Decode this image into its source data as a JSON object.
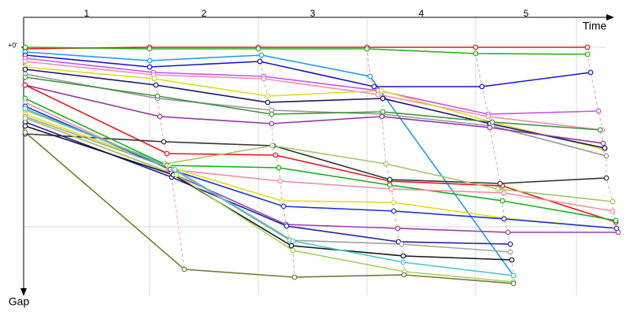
{
  "chart_data": {
    "type": "gap",
    "x_label": "Time",
    "y_label": "Gap",
    "laps": [
      "1",
      "2",
      "3",
      "4",
      "5"
    ],
    "xlim": [
      0,
      745
    ],
    "ylim": [
      -38,
      315
    ],
    "xgrid": [
      160,
      298,
      436,
      574,
      702
    ],
    "ygrid": [
      0,
      228
    ],
    "yticks": [
      {
        "value": 0,
        "label": "+0'"
      }
    ],
    "series": [
      {
        "color": "#e8141c",
        "x": [
          2,
          160,
          298,
          436,
          574,
          716
        ],
        "y": [
          2,
          0,
          0,
          0,
          0,
          0
        ]
      },
      {
        "color": "#22b21a",
        "x": [
          2,
          160,
          298,
          436,
          574,
          716
        ],
        "y": [
          0,
          2,
          2,
          2,
          8,
          9
        ]
      },
      {
        "color": "#1e9cf0",
        "x": [
          2,
          160,
          302,
          440,
          622
        ],
        "y": [
          6,
          17,
          10,
          37,
          290
        ]
      },
      {
        "color": "#1414c8",
        "x": [
          2,
          160,
          300,
          445,
          582,
          720
        ],
        "y": [
          10,
          25,
          18,
          50,
          50,
          32
        ]
      },
      {
        "color": "#c850f0",
        "x": [
          2,
          165,
          305,
          450,
          590,
          730
        ],
        "y": [
          14,
          32,
          37,
          55,
          85,
          81
        ]
      },
      {
        "color": "#f08cb4",
        "x": [
          2,
          165,
          305,
          450,
          590,
          735
        ],
        "y": [
          18,
          35,
          40,
          60,
          88,
          105
        ]
      },
      {
        "color": "#dcdc1e",
        "x": [
          2,
          166,
          310,
          454,
          595,
          738
        ],
        "y": [
          25,
          40,
          62,
          55,
          95,
          130
        ]
      },
      {
        "color": "#14146e",
        "x": [
          2,
          168,
          310,
          456,
          592,
          738
        ],
        "y": [
          28,
          48,
          70,
          65,
          97,
          128
        ]
      },
      {
        "color": "#969696",
        "x": [
          2,
          170,
          315,
          456,
          595,
          740
        ],
        "y": [
          34,
          65,
          80,
          85,
          100,
          138
        ]
      },
      {
        "color": "#3c963c",
        "x": [
          2,
          170,
          315,
          456,
          595,
          732
        ],
        "y": [
          38,
          62,
          85,
          82,
          95,
          105
        ]
      },
      {
        "color": "#9632a0",
        "x": [
          2,
          173,
          315,
          455,
          592,
          736
        ],
        "y": [
          48,
          88,
          97,
          88,
          102,
          122
        ]
      },
      {
        "color": "#e8141c",
        "x": [
          2,
          182,
          320,
          465,
          608,
          752
        ],
        "y": [
          48,
          135,
          137,
          170,
          176,
          222
        ]
      },
      {
        "color": "#323232",
        "x": [
          2,
          178,
          317,
          465,
          605,
          740
        ],
        "y": [
          110,
          120,
          125,
          168,
          173,
          166
        ]
      },
      {
        "color": "#a0c864",
        "x": [
          2,
          180,
          316,
          460,
          602,
          748
        ],
        "y": [
          80,
          148,
          125,
          148,
          180,
          196
        ]
      },
      {
        "color": "#14b414",
        "x": [
          2,
          182,
          324,
          465,
          608,
          752
        ],
        "y": [
          65,
          150,
          153,
          175,
          195,
          220
        ]
      },
      {
        "color": "#f08ca0",
        "x": [
          2,
          184,
          326,
          467,
          610,
          748
        ],
        "y": [
          70,
          155,
          170,
          180,
          185,
          208
        ]
      },
      {
        "color": "#e6dc14",
        "x": [
          2,
          185,
          328,
          470,
          610,
          752
        ],
        "y": [
          85,
          152,
          195,
          197,
          217,
          230
        ]
      },
      {
        "color": "#1e32dc",
        "x": [
          2,
          186,
          330,
          470,
          610,
          753
        ],
        "y": [
          75,
          155,
          202,
          208,
          218,
          230
        ]
      },
      {
        "color": "#a03cb4",
        "x": [
          2,
          188,
          333,
          475,
          615,
          755
        ],
        "y": [
          90,
          160,
          225,
          230,
          235,
          235
        ]
      },
      {
        "color": "#1e1ea0",
        "x": [
          2,
          188,
          334,
          476,
          618
        ],
        "y": [
          95,
          165,
          227,
          247,
          250
        ]
      },
      {
        "color": "#a0a0a0",
        "x": [
          2,
          190,
          338,
          480,
          618
        ],
        "y": [
          88,
          155,
          245,
          250,
          260
        ]
      },
      {
        "color": "#141414",
        "x": [
          2,
          190,
          340,
          482,
          620
        ],
        "y": [
          100,
          162,
          252,
          265,
          270
        ]
      },
      {
        "color": "#46c8c8",
        "x": [
          2,
          192,
          342,
          482,
          622
        ],
        "y": [
          78,
          155,
          246,
          273,
          290
        ]
      },
      {
        "color": "#a0d25a",
        "x": [
          2,
          194,
          342,
          484,
          622
        ],
        "y": [
          90,
          162,
          258,
          285,
          298
        ]
      },
      {
        "color": "#787832",
        "x": [
          2,
          204,
          344,
          483,
          622
        ],
        "y": [
          108,
          282,
          292,
          289,
          300
        ]
      }
    ]
  }
}
